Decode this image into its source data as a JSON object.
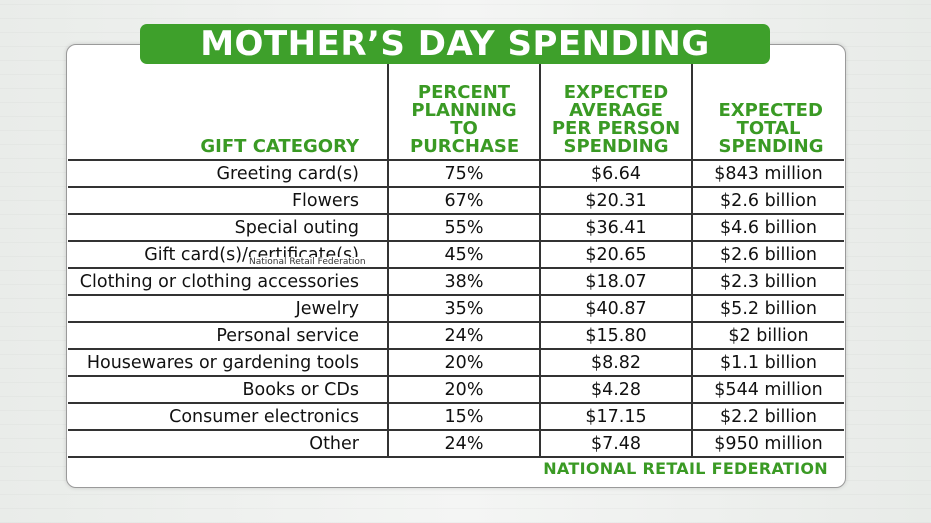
{
  "chart_data": {
    "type": "table",
    "title": "MOTHER’S DAY SPENDING",
    "columns": [
      "GIFT CATEGORY",
      "PERCENT PLANNING TO PURCHASE",
      "EXPECTED AVERAGE PER PERSON SPENDING",
      "EXPECTED TOTAL SPENDING"
    ],
    "rows": [
      [
        "Greeting card(s)",
        "75%",
        "$6.64",
        "$843 million"
      ],
      [
        "Flowers",
        "67%",
        "$20.31",
        "$2.6 billion"
      ],
      [
        "Special outing",
        "55%",
        "$36.41",
        "$4.6 billion"
      ],
      [
        "Gift card(s)/certificate(s)",
        "45%",
        "$20.65",
        "$2.6 billion"
      ],
      [
        "Clothing or clothing accessories",
        "38%",
        "$18.07",
        "$2.3 billion"
      ],
      [
        "Jewelry",
        "35%",
        "$40.87",
        "$5.2 billion"
      ],
      [
        "Personal service",
        "24%",
        "$15.80",
        "$2 billion"
      ],
      [
        "Housewares or gardening tools",
        "20%",
        "$8.82",
        "$1.1 billion"
      ],
      [
        "Books or CDs",
        "20%",
        "$4.28",
        "$544 million"
      ],
      [
        "Consumer electronics",
        "15%",
        "$17.15",
        "$2.2 billion"
      ],
      [
        "Other",
        "24%",
        "$7.48",
        "$950 million"
      ]
    ],
    "source": "NATIONAL RETAIL FEDERATION",
    "watermark": "National Retail Federation"
  },
  "colors": {
    "accent_green": "#3ea02b",
    "header_green": "#3a9a24"
  }
}
